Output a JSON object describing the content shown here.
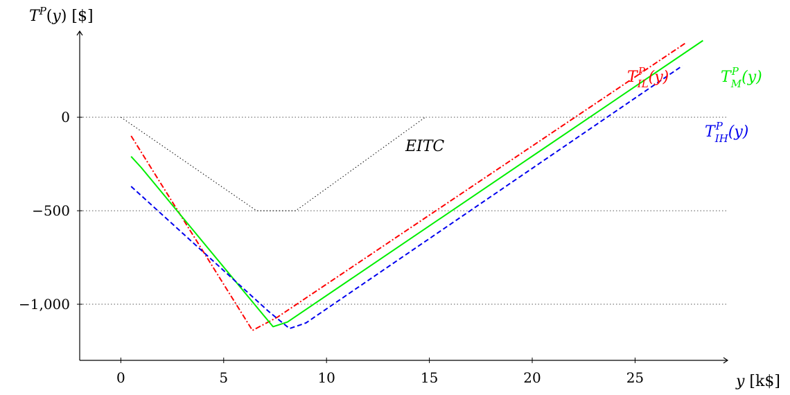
{
  "chart_data": {
    "type": "line",
    "ylabel": "T^P(y) [$]",
    "xlabel": "y [k$]",
    "xlim": [
      -2,
      29.5
    ],
    "ylim": [
      -1300,
      460
    ],
    "x_ticks": [
      0,
      5,
      10,
      15,
      20,
      25
    ],
    "x_tick_labels": [
      "0",
      "5",
      "10",
      "15",
      "20",
      "25"
    ],
    "y_ticks": [
      0,
      -500,
      -1000
    ],
    "y_tick_labels": [
      "0",
      "−500",
      "−1,000"
    ],
    "gridlines_y": [
      0,
      -500,
      -1000
    ],
    "series": [
      {
        "key": "TIL",
        "name": "T_IL^P(y)",
        "color": "#ff0000",
        "dash": "dashdot",
        "points": [
          [
            0.5,
            -100
          ],
          [
            6.4,
            -1140
          ],
          [
            7.6,
            -1070
          ],
          [
            27.5,
            400
          ]
        ]
      },
      {
        "key": "TM",
        "name": "T_M^P(y)",
        "color": "#00ee00",
        "dash": "solid",
        "points": [
          [
            0.5,
            -210
          ],
          [
            1.0,
            -270
          ],
          [
            7.4,
            -1120
          ],
          [
            8.1,
            -1095
          ],
          [
            28.3,
            410
          ]
        ]
      },
      {
        "key": "TIH",
        "name": "T_IH^P(y)",
        "color": "#0000ee",
        "dash": "dashed",
        "points": [
          [
            0.5,
            -370
          ],
          [
            7.2,
            -1040
          ],
          [
            8.2,
            -1130
          ],
          [
            9.0,
            -1100
          ],
          [
            27.3,
            275
          ]
        ]
      },
      {
        "key": "EITC",
        "name": "EITC",
        "color": "#000000",
        "dash": "dotted",
        "points": [
          [
            0,
            0
          ],
          [
            6.6,
            -500
          ],
          [
            8.5,
            -500
          ],
          [
            14.8,
            0
          ]
        ]
      }
    ]
  }
}
